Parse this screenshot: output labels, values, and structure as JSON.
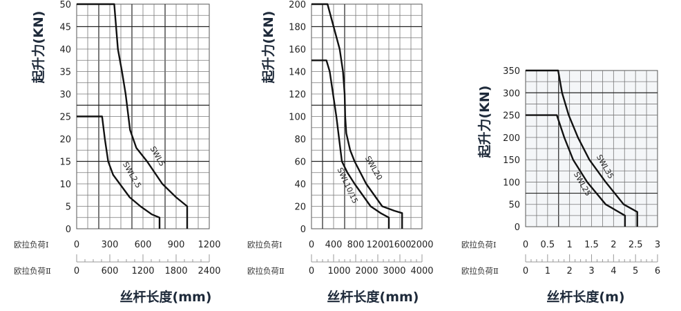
{
  "chart_data": [
    {
      "type": "line",
      "ylabel": "起升力(KN)",
      "xlabel": "丝杆长度(mm)",
      "ylim": [
        0,
        50
      ],
      "yticks": [
        "0",
        "5",
        "10",
        "15",
        "20",
        "25",
        "30",
        "35",
        "40",
        "45",
        "50"
      ],
      "xaxis_I": {
        "label": "欧拉负荷Ⅰ",
        "range": [
          0,
          1200
        ],
        "ticks": [
          "0",
          "300",
          "600",
          "900",
          "1200"
        ]
      },
      "xaxis_II": {
        "label": "欧拉负荷Ⅱ",
        "range": [
          0,
          2400
        ],
        "ticks": [
          "0",
          "600",
          "1200",
          "1800",
          "2400"
        ]
      },
      "grid": true,
      "series": [
        {
          "name": "SWL5",
          "x": [
            0,
            340,
            373,
            410,
            443,
            483,
            540,
            637,
            775,
            900,
            1000,
            1000
          ],
          "y": [
            50,
            50,
            40,
            35,
            30,
            22,
            18,
            15,
            10,
            7,
            5,
            0
          ]
        },
        {
          "name": "SWL2.5",
          "x": [
            0,
            230,
            255,
            285,
            330,
            390,
            480,
            577,
            680,
            750,
            750
          ],
          "y": [
            25,
            25,
            20,
            15,
            12,
            10,
            7,
            5,
            3.2,
            2.5,
            0
          ]
        }
      ]
    },
    {
      "type": "line",
      "ylabel": "起升力(KN)",
      "xlabel": "丝杆长度(mm)",
      "ylim": [
        0,
        200
      ],
      "yticks": [
        "0",
        "20",
        "40",
        "60",
        "80",
        "100",
        "120",
        "140",
        "160",
        "180",
        "200"
      ],
      "xaxis_I": {
        "label": "欧拉负荷Ⅰ",
        "range": [
          0,
          2000
        ],
        "ticks": [
          "0",
          "400",
          "800",
          "1200",
          "1600",
          "2000"
        ]
      },
      "xaxis_II": {
        "label": "欧拉负荷Ⅱ",
        "range": [
          0,
          4000
        ],
        "ticks": [
          "0",
          "1000",
          "2000",
          "3000",
          "4000"
        ]
      },
      "grid": true,
      "series": [
        {
          "name": "SWL20",
          "x": [
            0,
            290,
            400,
            510,
            570,
            600,
            610,
            630,
            700,
            780,
            990,
            1280,
            1500,
            1640,
            1640
          ],
          "y": [
            200,
            200,
            180,
            160,
            140,
            120,
            100,
            85,
            70,
            60,
            40,
            20,
            16,
            14,
            0
          ]
        },
        {
          "name": "SWL10/15",
          "x": [
            0,
            270,
            330,
            390,
            450,
            500,
            550,
            650,
            780,
            1070,
            1250,
            1400,
            1400
          ],
          "y": [
            150,
            150,
            140,
            120,
            100,
            80,
            60,
            50,
            40,
            20,
            14,
            10,
            0
          ]
        }
      ]
    },
    {
      "type": "line",
      "ylabel": "起升力(KN)",
      "xlabel": "丝杆长度(m)",
      "ylim": [
        0,
        350
      ],
      "yticks": [
        "0",
        "50",
        "100",
        "150",
        "200",
        "250",
        "300",
        "350"
      ],
      "xaxis_I": {
        "label": "欧拉负荷Ⅰ",
        "range": [
          0,
          3
        ],
        "ticks": [
          "0",
          "0.5",
          "1",
          "1.5",
          "2",
          "2.5",
          "3"
        ]
      },
      "xaxis_II": {
        "label": "欧拉负荷Ⅱ",
        "range": [
          0,
          6
        ],
        "ticks": [
          "0",
          "1",
          "2",
          "3",
          "4",
          "5",
          "6"
        ]
      },
      "grid": true,
      "series": [
        {
          "name": "SWL35",
          "x": [
            0,
            0.74,
            0.83,
            0.98,
            1.19,
            1.45,
            1.82,
            2.23,
            2.54,
            2.54
          ],
          "y": [
            350,
            350,
            300,
            250,
            200,
            150,
            100,
            50,
            33,
            0
          ]
        },
        {
          "name": "SWL25",
          "x": [
            0,
            0.71,
            0.88,
            1.08,
            1.4,
            1.82,
            2.26,
            2.26
          ],
          "y": [
            250,
            250,
            200,
            150,
            100,
            50,
            25,
            0
          ]
        }
      ]
    }
  ]
}
